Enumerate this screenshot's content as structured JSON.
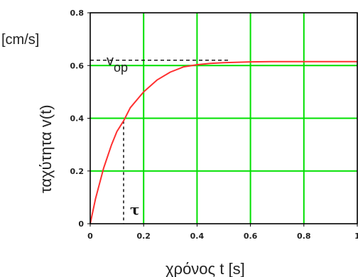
{
  "chart_data": {
    "type": "line",
    "xlabel": "χρόνος  t   [s]",
    "ylabel": "ταχύτητα v(t)",
    "yunit": "[cm/s]",
    "xlim": [
      0,
      1
    ],
    "ylim": [
      0,
      0.8
    ],
    "x_ticks": [
      "0",
      "0.2",
      "0.4",
      "0.6",
      "0.8",
      "1"
    ],
    "y_ticks": [
      "0",
      "0.2",
      "0.4",
      "0.6",
      "0.8"
    ],
    "grid": true,
    "grid_color": "#00e000",
    "line_color": "#ff3030",
    "series": [
      {
        "x": [
          0,
          0.02,
          0.05,
          0.08,
          0.1,
          0.125,
          0.15,
          0.2,
          0.25,
          0.3,
          0.35,
          0.4,
          0.45,
          0.5,
          0.6,
          0.7,
          0.8,
          0.9,
          1.0
        ],
        "values": [
          0,
          0.095,
          0.21,
          0.3,
          0.35,
          0.39,
          0.44,
          0.5,
          0.545,
          0.575,
          0.595,
          0.603,
          0.608,
          0.611,
          0.614,
          0.615,
          0.615,
          0.615,
          0.615
        ]
      }
    ],
    "annotations": {
      "v_op": {
        "label_main": "v",
        "label_sub": "op",
        "value": 0.62
      },
      "tau": {
        "label": "τ",
        "value": 0.125,
        "v_at_tau": 0.39
      }
    }
  }
}
